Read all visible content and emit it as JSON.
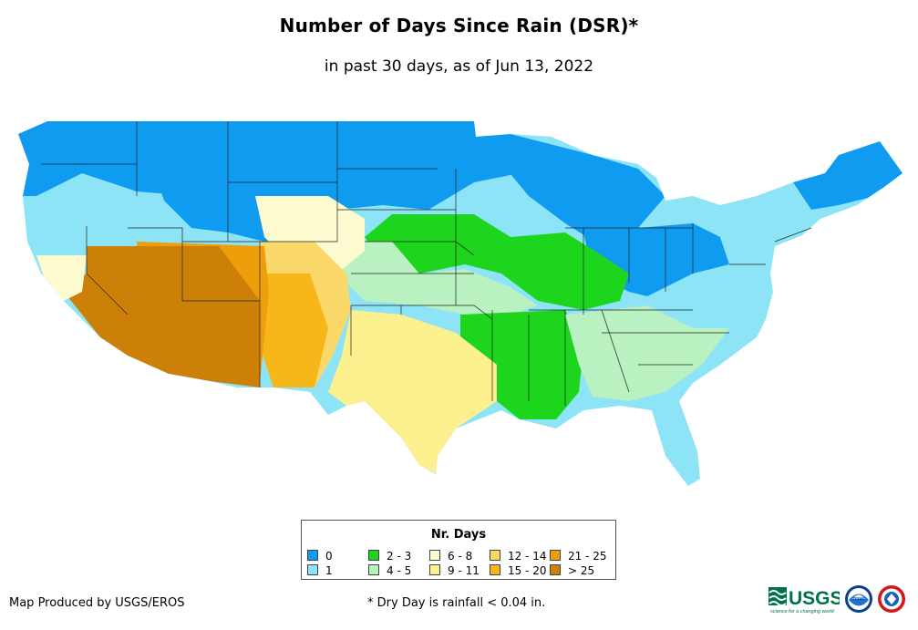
{
  "header": {
    "title": "Number of Days Since Rain (DSR)*",
    "subtitle": "in past 30 days, as of Jun 13, 2022"
  },
  "legend": {
    "title": "Nr. Days",
    "items": [
      {
        "label": "0",
        "color": "#0f9cf0"
      },
      {
        "label": "1",
        "color": "#8de4f7"
      },
      {
        "label": "2 - 3",
        "color": "#1ed51e"
      },
      {
        "label": "4 - 5",
        "color": "#b9f2c0"
      },
      {
        "label": "6 - 8",
        "color": "#fdfad0"
      },
      {
        "label": "9 - 11",
        "color": "#fdf18f"
      },
      {
        "label": "12 - 14",
        "color": "#fbd86a"
      },
      {
        "label": "15 - 20",
        "color": "#f7b61a"
      },
      {
        "label": "21 - 25",
        "color": "#ee9d0b"
      },
      {
        "label": "> 25",
        "color": "#cc8008"
      }
    ]
  },
  "footer": {
    "producer": "Map Produced by USGS/EROS",
    "footnote": "* Dry Day is rainfall < 0.04 in.",
    "logos": {
      "usgs": "USGS",
      "usgs_tagline": "science for a changing world",
      "noaa": "noaa"
    }
  },
  "map_regions": [
    {
      "region": "Pacific Northwest",
      "category": "0"
    },
    {
      "region": "Northern Plains / Upper Midwest",
      "category": "0"
    },
    {
      "region": "Ohio Valley / Great Lakes",
      "category": "0"
    },
    {
      "region": "California coast / Great Basin",
      "category": "1"
    },
    {
      "region": "Lower Mississippi Valley",
      "category": "2 - 3"
    },
    {
      "region": "Central Plains",
      "category": "4 - 5"
    },
    {
      "region": "Texas",
      "category": "9 - 11"
    },
    {
      "region": "Desert Southwest",
      "category": "> 25"
    }
  ]
}
